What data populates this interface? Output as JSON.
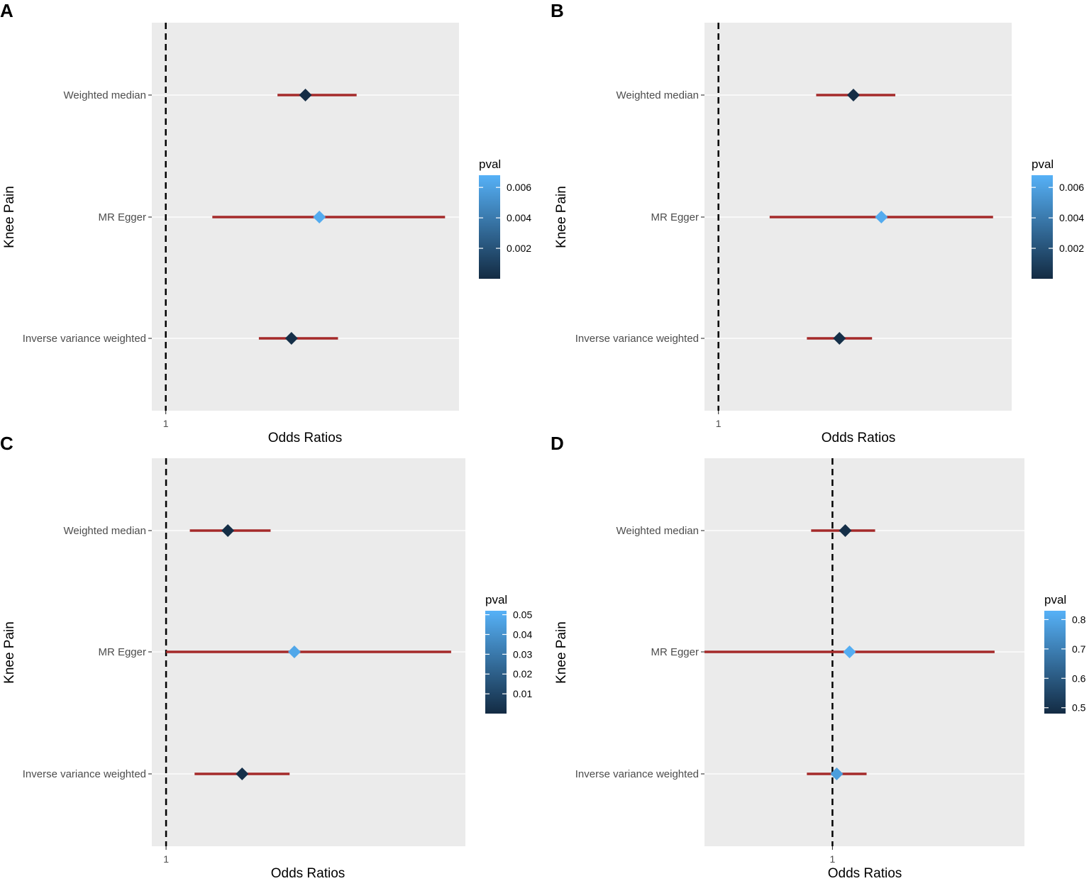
{
  "chart_data": [
    {
      "panel": "A",
      "type": "forest",
      "xlabel": "Odds Ratios",
      "ylabel": "Knee Pain",
      "x_ticks": [
        {
          "value": 1,
          "label": "1"
        }
      ],
      "xlim": [
        0.97,
        1.63
      ],
      "reference_line": 1,
      "legend": {
        "title": "pval",
        "range": [
          0.0,
          0.0068
        ],
        "ticks": [
          {
            "value": 0.002,
            "label": "0.002"
          },
          {
            "value": 0.004,
            "label": "0.004"
          },
          {
            "value": 0.006,
            "label": "0.006"
          }
        ]
      },
      "rows": [
        {
          "label": "Weighted median",
          "or": 1.3,
          "lower": 1.24,
          "upper": 1.41,
          "pval": 0.0001
        },
        {
          "label": "MR Egger",
          "or": 1.33,
          "lower": 1.1,
          "upper": 1.6,
          "pval": 0.0065
        },
        {
          "label": "Inverse variance weighted",
          "or": 1.27,
          "lower": 1.2,
          "upper": 1.37,
          "pval": 0.0002
        }
      ]
    },
    {
      "panel": "B",
      "type": "forest",
      "xlabel": "Odds Ratios",
      "ylabel": "Knee Pain",
      "x_ticks": [
        {
          "value": 1,
          "label": "1"
        }
      ],
      "xlim": [
        0.97,
        1.63
      ],
      "reference_line": 1,
      "legend": {
        "title": "pval",
        "range": [
          0.0,
          0.0068
        ],
        "ticks": [
          {
            "value": 0.002,
            "label": "0.002"
          },
          {
            "value": 0.004,
            "label": "0.004"
          },
          {
            "value": 0.006,
            "label": "0.006"
          }
        ]
      },
      "rows": [
        {
          "label": "Weighted median",
          "or": 1.29,
          "lower": 1.21,
          "upper": 1.38,
          "pval": 0.0001
        },
        {
          "label": "MR Egger",
          "or": 1.35,
          "lower": 1.11,
          "upper": 1.59,
          "pval": 0.0065
        },
        {
          "label": "Inverse variance weighted",
          "or": 1.26,
          "lower": 1.19,
          "upper": 1.33,
          "pval": 0.0002
        }
      ]
    },
    {
      "panel": "C",
      "type": "forest",
      "xlabel": "Odds Ratios",
      "ylabel": "Knee Pain",
      "x_ticks": [
        {
          "value": 1,
          "label": "1"
        }
      ],
      "xlim": [
        0.97,
        1.63
      ],
      "reference_line": 1,
      "legend": {
        "title": "pval",
        "range": [
          0.0,
          0.052
        ],
        "ticks": [
          {
            "value": 0.01,
            "label": "0.01"
          },
          {
            "value": 0.02,
            "label": "0.02"
          },
          {
            "value": 0.03,
            "label": "0.03"
          },
          {
            "value": 0.04,
            "label": "0.04"
          },
          {
            "value": 0.05,
            "label": "0.05"
          }
        ]
      },
      "rows": [
        {
          "label": "Weighted median",
          "or": 1.13,
          "lower": 1.05,
          "upper": 1.22,
          "pval": 0.001
        },
        {
          "label": "MR Egger",
          "or": 1.27,
          "lower": 1.0,
          "upper": 1.6,
          "pval": 0.048
        },
        {
          "label": "Inverse variance weighted",
          "or": 1.16,
          "lower": 1.06,
          "upper": 1.26,
          "pval": 0.002
        }
      ]
    },
    {
      "panel": "D",
      "type": "forest",
      "xlabel": "Odds Ratios",
      "ylabel": "Knee Pain",
      "x_ticks": [
        {
          "value": 1,
          "label": "1"
        }
      ],
      "xlim": [
        0.7,
        1.45
      ],
      "reference_line": 1,
      "legend": {
        "title": "pval",
        "range": [
          0.48,
          0.83
        ],
        "ticks": [
          {
            "value": 0.5,
            "label": "0.5"
          },
          {
            "value": 0.6,
            "label": "0.6"
          },
          {
            "value": 0.7,
            "label": "0.7"
          },
          {
            "value": 0.8,
            "label": "0.8"
          }
        ]
      },
      "rows": [
        {
          "label": "Weighted median",
          "or": 1.03,
          "lower": 0.95,
          "upper": 1.1,
          "pval": 0.49
        },
        {
          "label": "MR Egger",
          "or": 1.04,
          "lower": 0.7,
          "upper": 1.38,
          "pval": 0.82
        },
        {
          "label": "Inverse variance weighted",
          "or": 1.01,
          "lower": 0.94,
          "upper": 1.08,
          "pval": 0.78
        }
      ]
    }
  ]
}
